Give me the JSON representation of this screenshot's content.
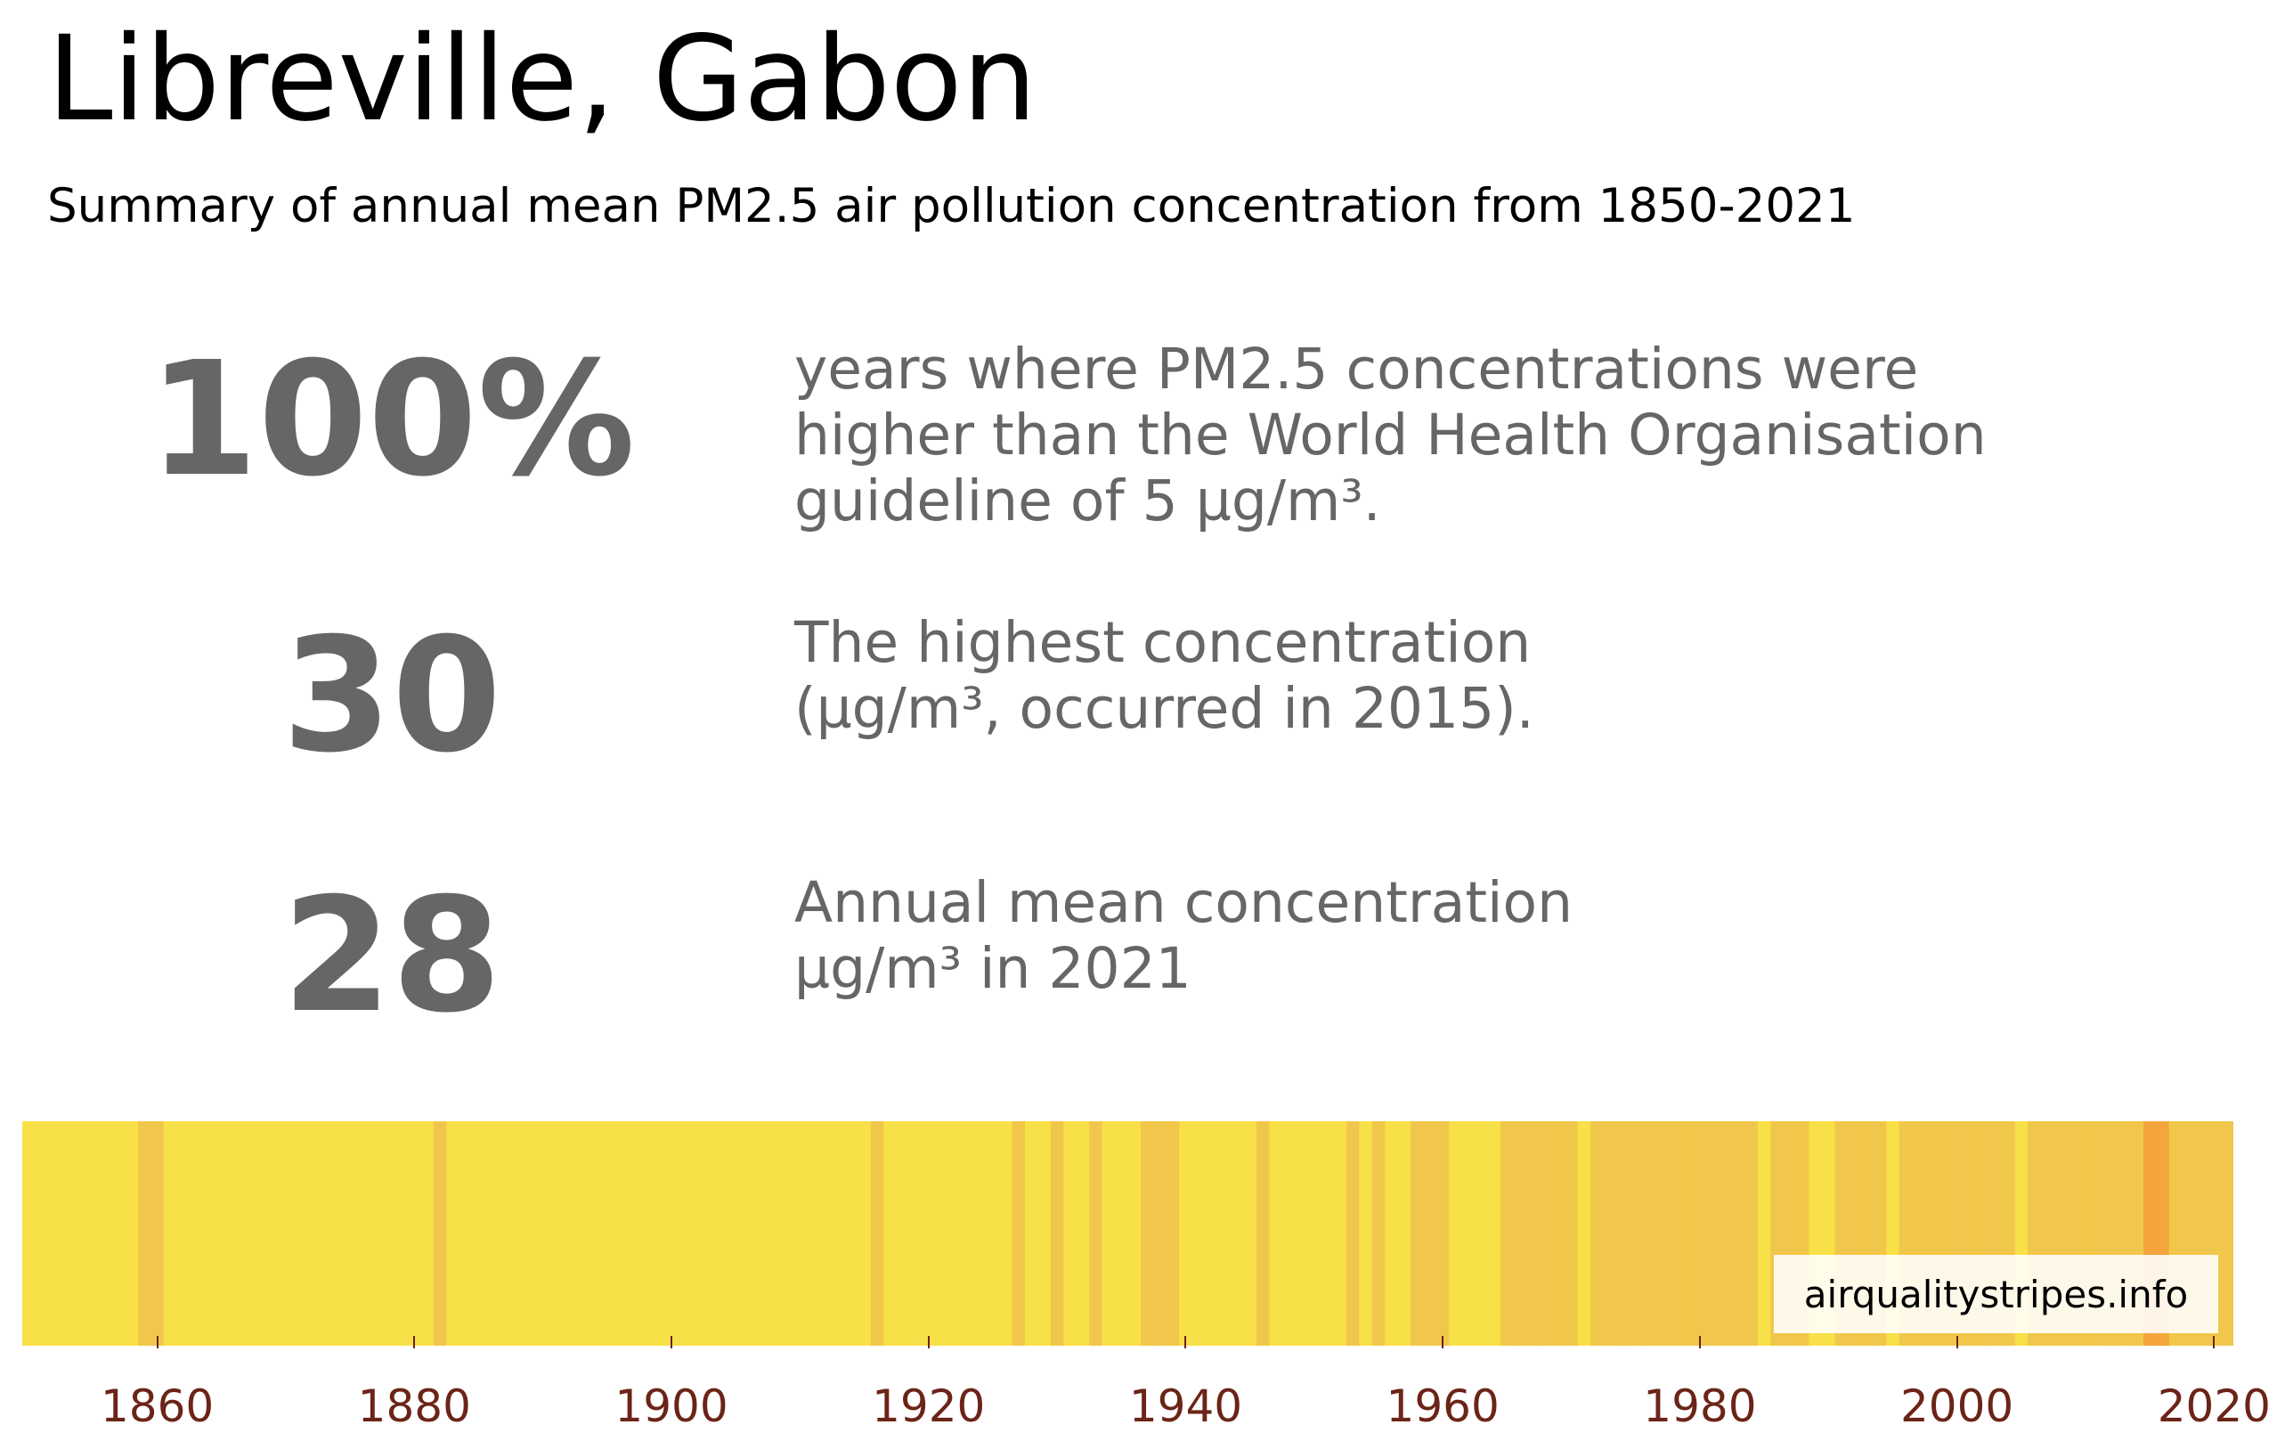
{
  "chart_data": {
    "type": "heatmap",
    "title": "Libreville, Gabon",
    "subtitle": "Summary of annual mean PM2.5 air pollution concentration from 1850-2021",
    "stats": [
      {
        "value": "100%",
        "description": [
          "years where PM2.5 concentrations were",
          "higher than the World Health Organisation",
          "guideline of 5 µg/m³."
        ]
      },
      {
        "value": "30",
        "description": [
          "The highest concentration",
          "(µg/m³, occurred in 2015)."
        ]
      },
      {
        "value": "28",
        "description": [
          "Annual mean concentration",
          "µg/m³ in 2021"
        ]
      }
    ],
    "x_range": [
      1850,
      2021
    ],
    "x_ticks": [
      "1860",
      "1880",
      "1900",
      "1920",
      "1940",
      "1960",
      "1980",
      "2000",
      "2020"
    ],
    "source_label": "airqualitystripes.info",
    "colors": {
      "low": "#f8e048",
      "mid": "#f1c74b",
      "high": "#f4a53c",
      "tick_label": "#6b2417",
      "text_gray": "#666666"
    },
    "stripe_levels_legend": "0 = lowest band, 1 = middle band, 2 = highest band (year of max concentration)",
    "stripe_years": [
      1850,
      1851,
      1852,
      1853,
      1854,
      1855,
      1856,
      1857,
      1858,
      1859,
      1860,
      1861,
      1862,
      1863,
      1864,
      1865,
      1866,
      1867,
      1868,
      1869,
      1870,
      1871,
      1872,
      1873,
      1874,
      1875,
      1876,
      1877,
      1878,
      1879,
      1880,
      1881,
      1882,
      1883,
      1884,
      1885,
      1886,
      1887,
      1888,
      1889,
      1890,
      1891,
      1892,
      1893,
      1894,
      1895,
      1896,
      1897,
      1898,
      1899,
      1900,
      1901,
      1902,
      1903,
      1904,
      1905,
      1906,
      1907,
      1908,
      1909,
      1910,
      1911,
      1912,
      1913,
      1914,
      1915,
      1916,
      1917,
      1918,
      1919,
      1920,
      1921,
      1922,
      1923,
      1924,
      1925,
      1926,
      1927,
      1928,
      1929,
      1930,
      1931,
      1932,
      1933,
      1934,
      1935,
      1936,
      1937,
      1938,
      1939,
      1940,
      1941,
      1942,
      1943,
      1944,
      1945,
      1946,
      1947,
      1948,
      1949,
      1950,
      1951,
      1952,
      1953,
      1954,
      1955,
      1956,
      1957,
      1958,
      1959,
      1960,
      1961,
      1962,
      1963,
      1964,
      1965,
      1966,
      1967,
      1968,
      1969,
      1970,
      1971,
      1972,
      1973,
      1974,
      1975,
      1976,
      1977,
      1978,
      1979,
      1980,
      1981,
      1982,
      1983,
      1984,
      1985,
      1986,
      1987,
      1988,
      1989,
      1990,
      1991,
      1992,
      1993,
      1994,
      1995,
      1996,
      1997,
      1998,
      1999,
      2000,
      2001,
      2002,
      2003,
      2004,
      2005,
      2006,
      2007,
      2008,
      2009,
      2010,
      2011,
      2012,
      2013,
      2014,
      2015,
      2016,
      2017,
      2018,
      2019,
      2020,
      2021
    ],
    "stripe_levels": [
      0,
      0,
      0,
      0,
      0,
      0,
      0,
      0,
      0,
      1,
      1,
      0,
      0,
      0,
      0,
      0,
      0,
      0,
      0,
      0,
      0,
      0,
      0,
      0,
      0,
      0,
      0,
      0,
      0,
      0,
      0,
      0,
      1,
      0,
      0,
      0,
      0,
      0,
      0,
      0,
      0,
      0,
      0,
      0,
      0,
      0,
      0,
      0,
      0,
      0,
      0,
      0,
      0,
      0,
      0,
      0,
      0,
      0,
      0,
      0,
      0,
      0,
      0,
      0,
      0,
      0,
      1,
      0,
      0,
      0,
      0,
      0,
      0,
      0,
      0,
      0,
      0,
      1,
      0,
      0,
      1,
      0,
      0,
      1,
      0,
      0,
      0,
      1,
      1,
      1,
      0,
      0,
      0,
      0,
      0,
      0,
      1,
      0,
      0,
      0,
      0,
      0,
      0,
      1,
      0,
      1,
      0,
      0,
      1,
      1,
      1,
      0,
      0,
      0,
      0,
      1,
      1,
      1,
      1,
      1,
      1,
      0,
      1,
      1,
      1,
      1,
      1,
      1,
      1,
      1,
      1,
      1,
      1,
      1,
      1,
      0,
      1,
      1,
      1,
      0,
      0,
      1,
      1,
      1,
      1,
      0,
      1,
      1,
      1,
      1,
      1,
      1,
      1,
      1,
      1,
      0,
      1,
      1,
      1,
      1,
      1,
      1,
      1,
      1,
      1,
      2,
      2,
      1,
      1,
      1,
      1,
      1
    ]
  }
}
